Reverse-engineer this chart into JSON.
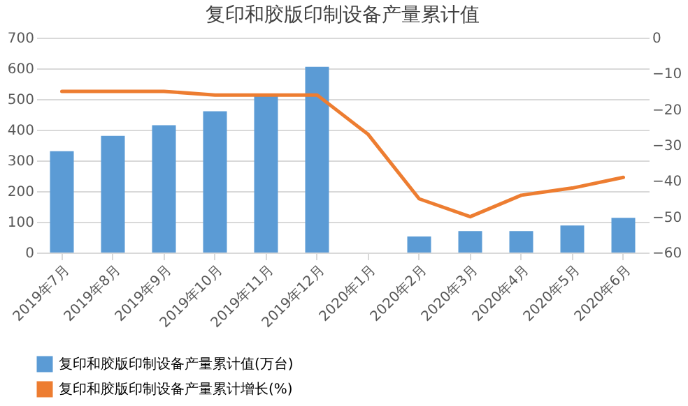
{
  "chart_data": {
    "type": "bar",
    "title": "复印和胶版印制设备产量累计值",
    "categories": [
      "2019年7月",
      "2019年8月",
      "2019年9月",
      "2019年10月",
      "2019年11月",
      "2019年12月",
      "2020年1月",
      "2020年2月",
      "2020年3月",
      "2020年4月",
      "2020年5月",
      "2020年6月"
    ],
    "series": [
      {
        "name": "复印和胶版印制设备产量累计值(万台)",
        "color": "#5b9bd5",
        "values": [
          330,
          380,
          415,
          460,
          510,
          605,
          null,
          52,
          70,
          70,
          88,
          113
        ]
      },
      {
        "name": "复印和胶版印制设备产量累计增长(%)",
        "type": "line",
        "axis": "y2",
        "color": "#ed7d31",
        "values": [
          -15,
          -15,
          -15,
          -16,
          -16,
          -16,
          -27,
          -45,
          -50,
          -44,
          -42,
          -39
        ]
      }
    ],
    "ylim": [
      0,
      700
    ],
    "yticks": [
      0,
      100,
      200,
      300,
      400,
      500,
      600,
      700
    ],
    "y2lim": [
      -60,
      0
    ],
    "y2ticks": [
      -60,
      -50,
      -40,
      -30,
      -20,
      -10,
      0
    ],
    "grid": "y",
    "legend": "bottom"
  }
}
